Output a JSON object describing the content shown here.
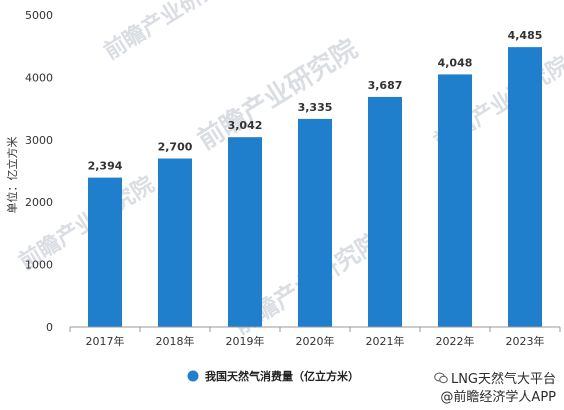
{
  "chart_data": {
    "type": "bar",
    "categories": [
      "2017年",
      "2018年",
      "2019年",
      "2020年",
      "2021年",
      "2022年",
      "2023年"
    ],
    "values": [
      2394,
      2700,
      3042,
      3335,
      3687,
      4048,
      4485
    ],
    "value_labels": [
      "2,394",
      "2,700",
      "3,042",
      "3,335",
      "3,687",
      "4,048",
      "4,485"
    ],
    "ylabel": "单位：亿立方米",
    "ylim": [
      0,
      5000
    ],
    "yticks": [
      0,
      1000,
      2000,
      3000,
      4000,
      5000
    ],
    "series": [
      {
        "name": "我国天然气消费量（亿立方米）",
        "color": "#1f7fcc"
      }
    ],
    "legend_position": "bottom-center",
    "grid": false
  },
  "watermark": {
    "text": "前瞻产业研究院",
    "color": "#bcc3cc"
  },
  "caption": {
    "line1": "LNG天然气大平台",
    "line2": "@前瞻经济学人APP"
  },
  "colors": {
    "bar": "#1f7fcc",
    "axis": "#999999",
    "text": "#333333"
  }
}
